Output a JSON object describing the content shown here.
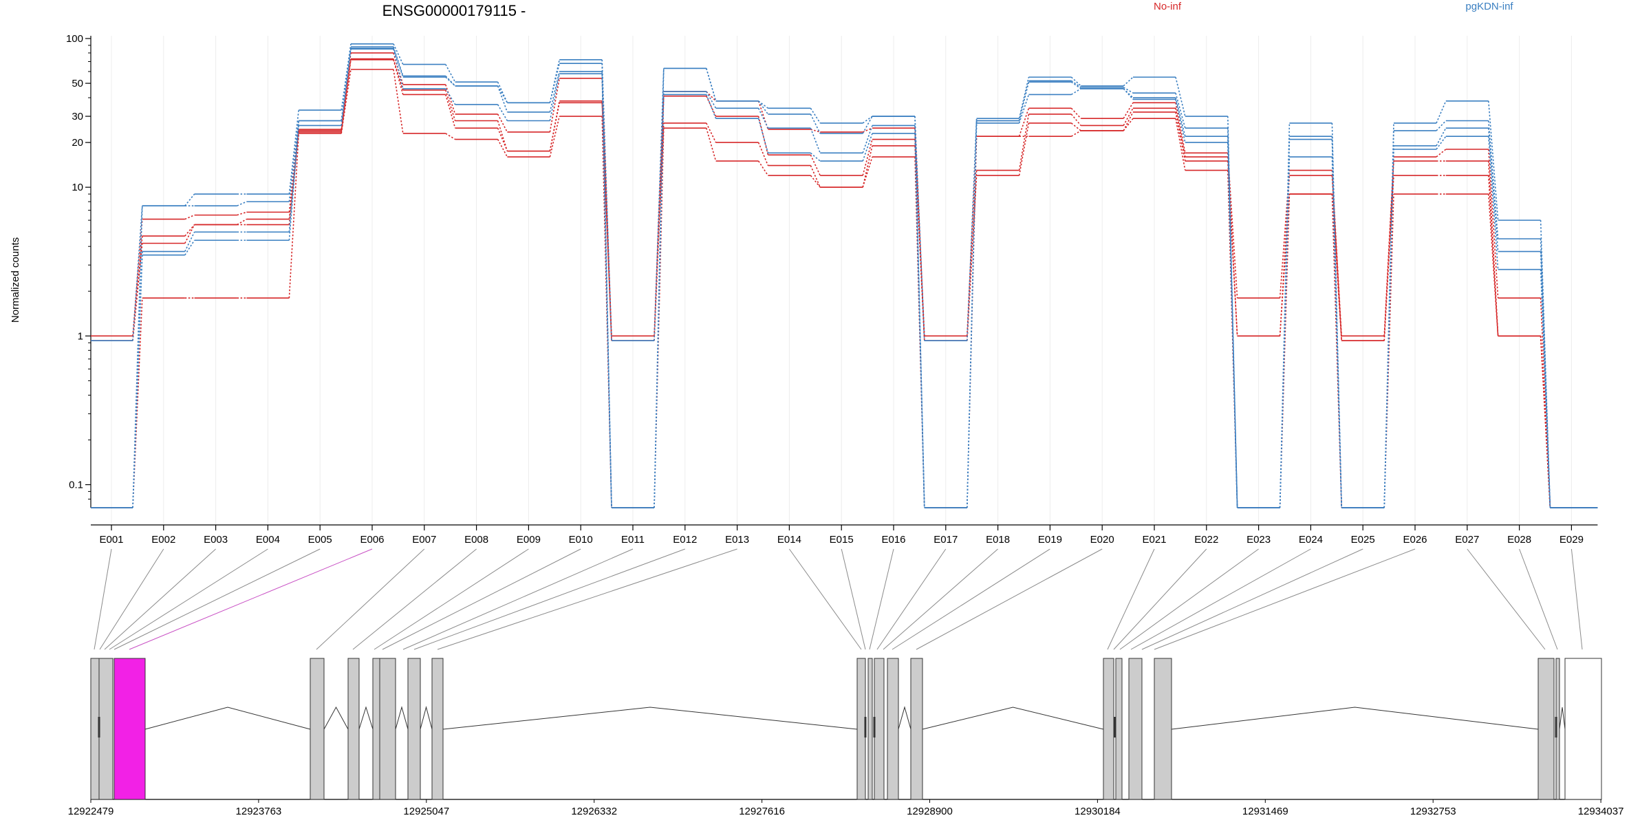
{
  "chart_data": {
    "type": "line",
    "title": "ENSG00000179115 -",
    "ylabel": "Normalized counts",
    "yscale": "log",
    "ylim": [
      0.07,
      100
    ],
    "y_ticks": [
      0.1,
      1,
      10,
      20,
      30,
      50,
      100
    ],
    "y_tick_labels": [
      "0.1",
      "1",
      "10",
      "20",
      "30",
      "50",
      "100"
    ],
    "categories": [
      "E001",
      "E002",
      "E003",
      "E004",
      "E005",
      "E006",
      "E007",
      "E008",
      "E009",
      "E010",
      "E011",
      "E012",
      "E013",
      "E014",
      "E015",
      "E016",
      "E017",
      "E018",
      "E019",
      "E020",
      "E021",
      "E022",
      "E023",
      "E024",
      "E025",
      "E026",
      "E027",
      "E028",
      "E029"
    ],
    "legend": [
      {
        "label": "No-inf",
        "color": "#d62728"
      },
      {
        "label": "pgKDN-inf",
        "color": "#3a7fc1"
      }
    ],
    "highlight_exon": "E006",
    "series": [
      {
        "group": "No-inf",
        "color": "#d62728",
        "values": [
          1.0,
          6.1,
          6.5,
          6.8,
          24.5,
          80,
          49,
          31,
          23.5,
          54,
          1.0,
          44,
          38,
          24.5,
          23.5,
          25,
          1.0,
          22,
          34,
          29,
          37,
          17,
          1.8,
          13,
          1.0,
          16,
          18,
          1.8,
          0.07
        ]
      },
      {
        "group": "No-inf",
        "color": "#d62728",
        "values": [
          0.93,
          4.7,
          5.6,
          6.1,
          23.5,
          73,
          45,
          28,
          17.5,
          38,
          0.93,
          41,
          30,
          16.5,
          12,
          21,
          0.93,
          13,
          31,
          26,
          34,
          16,
          1.0,
          12,
          0.93,
          15,
          15,
          1.0,
          0.07
        ]
      },
      {
        "group": "No-inf",
        "color": "#d62728",
        "values": [
          0.93,
          4.2,
          5.6,
          5.6,
          24,
          72,
          42,
          25,
          17.5,
          37,
          0.93,
          27,
          20,
          14,
          10,
          19,
          0.93,
          12,
          27,
          24,
          32,
          15,
          1.0,
          9,
          0.93,
          12,
          12,
          1.0,
          0.07
        ]
      },
      {
        "group": "No-inf",
        "color": "#d62728",
        "values": [
          0.07,
          1.8,
          1.8,
          1.8,
          23,
          62,
          23,
          21,
          16,
          30,
          0.07,
          25,
          15,
          12,
          10,
          16,
          0.07,
          22,
          22,
          24,
          29,
          13,
          0.07,
          9,
          0.07,
          9,
          9,
          1.0,
          0.07
        ]
      },
      {
        "group": "pgKDN-inf",
        "color": "#3a7fc1",
        "values": [
          0.93,
          7.5,
          9,
          9,
          33,
          92,
          67,
          51,
          37,
          72,
          0.93,
          63,
          38,
          34,
          27,
          30,
          0.93,
          29,
          55,
          48,
          55,
          30,
          0.07,
          27,
          0.07,
          27,
          38,
          6,
          0.07
        ]
      },
      {
        "group": "pgKDN-inf",
        "color": "#3a7fc1",
        "values": [
          0.07,
          7.5,
          7.5,
          8,
          28,
          88,
          56,
          48,
          37,
          68,
          0.07,
          63,
          38,
          31,
          23,
          30,
          0.07,
          28,
          52,
          47,
          43,
          25,
          0.07,
          22,
          0.07,
          24,
          28,
          4.5,
          0.07
        ]
      },
      {
        "group": "pgKDN-inf",
        "color": "#3a7fc1",
        "values": [
          0.07,
          3.7,
          5,
          5,
          28,
          86,
          55,
          48,
          32,
          60,
          0.07,
          44,
          34,
          25,
          17,
          26,
          0.07,
          28,
          51,
          46,
          40,
          22,
          0.07,
          21,
          0.07,
          19,
          25,
          3.7,
          0.07
        ]
      },
      {
        "group": "pgKDN-inf",
        "color": "#3a7fc1",
        "values": [
          0.07,
          3.5,
          4.4,
          4.4,
          26,
          85,
          46,
          36,
          28,
          58,
          0.07,
          42,
          29,
          17,
          15,
          23,
          0.07,
          27,
          42,
          46,
          39,
          20,
          0.07,
          16,
          0.07,
          18,
          22,
          2.8,
          0.07
        ]
      }
    ],
    "genomic_positions": [
      "12922479",
      "12923763",
      "12925047",
      "12926332",
      "12927616",
      "12928900",
      "12930184",
      "12931469",
      "12932753",
      "12934037"
    ]
  }
}
